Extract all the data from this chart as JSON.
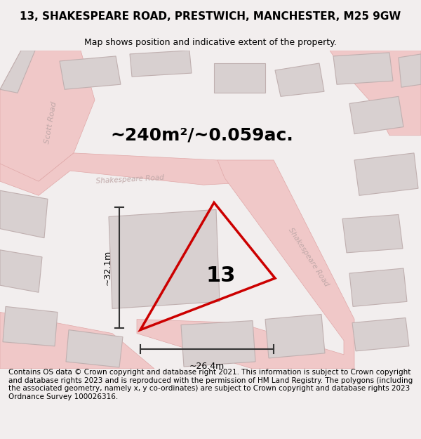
{
  "title": "13, SHAKESPEARE ROAD, PRESTWICH, MANCHESTER, M25 9GW",
  "subtitle": "Map shows position and indicative extent of the property.",
  "area_label": "~240m²/~0.059ac.",
  "number_label": "13",
  "dim_h": "~32.1m",
  "dim_w": "~26.4m",
  "footer": "Contains OS data © Crown copyright and database right 2021. This information is subject to Crown copyright and database rights 2023 and is reproduced with the permission of HM Land Registry. The polygons (including the associated geometry, namely x, y co-ordinates) are subject to Crown copyright and database rights 2023 Ordnance Survey 100026316.",
  "map_bg": "#f2eeee",
  "road_color": "#f0c8c8",
  "road_edge": "#e0a8a8",
  "building_fill": "#d8d0d0",
  "building_edge": "#c0b0b0",
  "red_color": "#cc0000",
  "dim_color": "#333333",
  "road_label_color": "#c0a8a8",
  "title_fontsize": 11,
  "subtitle_fontsize": 9,
  "area_fontsize": 18,
  "number_fontsize": 22,
  "footer_fontsize": 7.5,
  "dim_fontsize": 9
}
